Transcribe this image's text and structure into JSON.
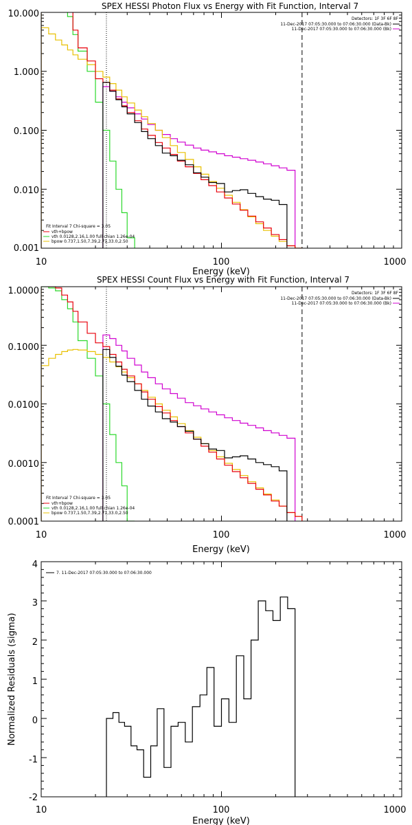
{
  "colors": {
    "data": "#000000",
    "total": "#e8000b",
    "vth": "#2bd82b",
    "bpow": "#e8c000",
    "bk": "#d000d0"
  },
  "chart_data": [
    {
      "type": "line",
      "title": "SPEX HESSI Photon Flux vs Energy with Fit Function, Interval 7",
      "xlabel": "Energy (keV)",
      "ylabel": "",
      "xscale": "log",
      "yscale": "log",
      "xlim": [
        10,
        1000
      ],
      "ylim": [
        0.001,
        10
      ],
      "xticks": [
        "10",
        "100",
        "1000"
      ],
      "yticks": [
        "0.001",
        "0.010",
        "0.100",
        "1.000",
        "10.000"
      ],
      "vlines": [
        23,
        280
      ],
      "header_lines": [
        "Detectors: 1F 3F 6F 8F",
        "11-Dec-2017 07:05:30.000 to 07:06:30.000 (Data-Bk)",
        "11-Dec-2017 07:05:30.000 to 07:06:30.000 (Bk)"
      ],
      "legend_lines": [
        "Fit Interval 7   Chi-square = 3.05",
        "vth+bpow",
        "vth 0.0128,2.16,1.00  full chian 1.26e-04",
        "bpow 0.737,1.50,7.39,2.71,33.0,2.50"
      ],
      "edges": [
        10,
        11,
        12,
        13,
        14,
        15,
        16,
        18,
        20,
        22,
        24,
        26,
        28,
        30,
        33,
        36,
        39,
        43,
        47,
        52,
        57,
        63,
        70,
        77,
        85,
        94,
        104,
        115,
        127,
        140,
        155,
        171,
        189,
        209,
        231,
        256,
        280
      ],
      "series": [
        {
          "name": "data",
          "key": "data",
          "start": 23,
          "end": 280,
          "values": [
            0.65,
            0.46,
            0.33,
            0.25,
            0.19,
            0.135,
            0.095,
            0.072,
            0.055,
            0.041,
            0.037,
            0.031,
            0.026,
            0.019,
            0.016,
            0.013,
            0.0125,
            0.009,
            0.0095,
            0.0098,
            0.0085,
            0.0075,
            0.0068,
            0.0065,
            0.0055
          ]
        },
        {
          "name": "vth+bpow",
          "key": "total",
          "start": 10,
          "end": 280,
          "values": [
            10.5,
            10.5,
            10.5,
            10.5,
            10.5,
            5.0,
            2.5,
            1.5,
            0.75,
            0.65,
            0.48,
            0.34,
            0.26,
            0.2,
            0.145,
            0.105,
            0.082,
            0.062,
            0.05,
            0.039,
            0.03,
            0.024,
            0.0185,
            0.0145,
            0.0115,
            0.009,
            0.0071,
            0.0056,
            0.0044,
            0.0035,
            0.0028,
            0.0022,
            0.0017,
            0.0014,
            0.0011,
            0.001
          ]
        },
        {
          "name": "vth",
          "key": "vth",
          "start": 10,
          "end": 38,
          "values": [
            10.5,
            10.5,
            10.5,
            10.5,
            8.5,
            4.2,
            2.2,
            1.0,
            0.3,
            0.1,
            0.03,
            0.01,
            0.004,
            0.0015,
            0.0006
          ]
        },
        {
          "name": "bpow",
          "key": "bpow",
          "start": 10,
          "end": 280,
          "values": [
            5.5,
            4.3,
            3.4,
            2.8,
            2.3,
            1.9,
            1.6,
            1.3,
            1.0,
            0.8,
            0.62,
            0.48,
            0.37,
            0.29,
            0.22,
            0.17,
            0.13,
            0.1,
            0.075,
            0.055,
            0.042,
            0.032,
            0.024,
            0.018,
            0.0135,
            0.0104,
            0.0079,
            0.006,
            0.0045,
            0.0034,
            0.0026,
            0.002,
            0.0016,
            0.0013,
            0.0011,
            0.001
          ]
        },
        {
          "name": "Bk",
          "key": "bk",
          "start": 23,
          "end": 280,
          "values": [
            0.55,
            0.46,
            0.37,
            0.3,
            0.24,
            0.19,
            0.155,
            0.125,
            0.1,
            0.085,
            0.072,
            0.063,
            0.056,
            0.05,
            0.046,
            0.043,
            0.04,
            0.037,
            0.035,
            0.033,
            0.031,
            0.029,
            0.027,
            0.025,
            0.023,
            0.021
          ]
        }
      ]
    },
    {
      "type": "line",
      "title": "SPEX HESSI Count Flux vs Energy with Fit Function, Interval 7",
      "xlabel": "Energy (keV)",
      "ylabel": "",
      "xscale": "log",
      "yscale": "log",
      "xlim": [
        10,
        1000
      ],
      "ylim": [
        0.0001,
        1
      ],
      "xticks": [
        "10",
        "100",
        "1000"
      ],
      "yticks": [
        "0.0001",
        "0.0010",
        "0.0100",
        "0.1000",
        "1.0000"
      ],
      "vlines": [
        23,
        280
      ],
      "header_lines": [
        "Detectors: 1F 3F 6F 8F",
        "11-Dec-2017 07:05:30.000 to 07:06:30.000 (Data-Bk)",
        "11-Dec-2017 07:05:30.000 to 07:06:30.000 (Bk)"
      ],
      "legend_lines": [
        "Fit Interval 7   Chi-square = 3.05",
        "vth+bpow",
        "vth 0.0128,2.16,1.00  full chian 1.26e-04",
        "bpow 0.737,1.50,7.39,2.71,33.0,2.50"
      ],
      "edges": [
        10,
        11,
        12,
        13,
        14,
        15,
        16,
        18,
        20,
        22,
        24,
        26,
        28,
        30,
        33,
        36,
        39,
        43,
        47,
        52,
        57,
        63,
        70,
        77,
        85,
        94,
        104,
        115,
        127,
        140,
        155,
        171,
        189,
        209,
        231,
        256,
        280
      ],
      "series": [
        {
          "name": "data",
          "key": "data",
          "start": 23,
          "end": 280,
          "values": [
            0.085,
            0.062,
            0.044,
            0.031,
            0.024,
            0.017,
            0.012,
            0.0092,
            0.0073,
            0.0056,
            0.0049,
            0.0041,
            0.0034,
            0.0025,
            0.0021,
            0.0017,
            0.0016,
            0.0012,
            0.00125,
            0.0013,
            0.00115,
            0.001,
            0.00092,
            0.00085,
            0.00072
          ]
        },
        {
          "name": "vth+bpow",
          "key": "total",
          "start": 10,
          "end": 280,
          "values": [
            1.05,
            1.0,
            0.95,
            0.72,
            0.55,
            0.38,
            0.25,
            0.16,
            0.11,
            0.095,
            0.07,
            0.052,
            0.039,
            0.03,
            0.022,
            0.016,
            0.012,
            0.009,
            0.007,
            0.0052,
            0.0041,
            0.0032,
            0.0025,
            0.0019,
            0.0015,
            0.00115,
            0.0009,
            0.0007,
            0.00055,
            0.00044,
            0.00035,
            0.00028,
            0.00022,
            0.00018,
            0.00014,
            0.00012
          ]
        },
        {
          "name": "vth",
          "key": "vth",
          "start": 10,
          "end": 34,
          "values": [
            1.0,
            0.95,
            0.85,
            0.6,
            0.42,
            0.25,
            0.12,
            0.06,
            0.03,
            0.01,
            0.003,
            0.001,
            0.0004,
            0.0001
          ]
        },
        {
          "name": "bpow",
          "key": "bpow",
          "start": 10,
          "end": 280,
          "values": [
            0.045,
            0.06,
            0.07,
            0.078,
            0.083,
            0.085,
            0.083,
            0.078,
            0.07,
            0.062,
            0.052,
            0.043,
            0.035,
            0.028,
            0.022,
            0.017,
            0.013,
            0.01,
            0.0078,
            0.006,
            0.0046,
            0.0035,
            0.0027,
            0.0021,
            0.0016,
            0.00125,
            0.00097,
            0.00076,
            0.0006,
            0.00047,
            0.00037,
            0.00029,
            0.00023,
            0.00018,
            0.00014,
            0.00012
          ]
        },
        {
          "name": "Bk",
          "key": "bk",
          "start": 23,
          "end": 280,
          "values": [
            0.15,
            0.13,
            0.1,
            0.08,
            0.06,
            0.046,
            0.035,
            0.028,
            0.022,
            0.018,
            0.015,
            0.0125,
            0.0105,
            0.0093,
            0.0082,
            0.0073,
            0.0065,
            0.0058,
            0.0052,
            0.0047,
            0.0043,
            0.0039,
            0.0035,
            0.0032,
            0.0029,
            0.0026
          ]
        }
      ]
    },
    {
      "type": "line",
      "title": "",
      "xlabel": "Energy (keV)",
      "ylabel": "Normalized Residuals (sigma)",
      "xscale": "log",
      "yscale": "linear",
      "xlim": [
        10,
        1000
      ],
      "ylim": [
        -2,
        4
      ],
      "xticks": [
        "10",
        "100",
        "1000"
      ],
      "yticks": [
        "-2",
        "-1",
        "0",
        "1",
        "2",
        "3",
        "4"
      ],
      "legend_lines": [
        "7. 11-Dec-2017 07:05:30.000 to 07:06:30.000"
      ],
      "edges": [
        23,
        25,
        27,
        29,
        31.5,
        34,
        37,
        40.5,
        44,
        48,
        52.5,
        57.5,
        63,
        69,
        76,
        83,
        91,
        100,
        110,
        121,
        133,
        146,
        160,
        176,
        193,
        212,
        233,
        256,
        280
      ],
      "series": [
        {
          "name": "residuals",
          "key": "data",
          "start": 23,
          "end": 280,
          "values": [
            0.0,
            0.15,
            -0.1,
            -0.2,
            -0.7,
            -0.8,
            -1.5,
            -0.7,
            0.25,
            -1.25,
            -0.2,
            -0.1,
            -0.6,
            0.3,
            0.6,
            1.3,
            -0.2,
            0.5,
            -0.1,
            1.6,
            0.5,
            2.0,
            3.0,
            2.75,
            2.5,
            3.1,
            2.8
          ]
        }
      ]
    }
  ]
}
